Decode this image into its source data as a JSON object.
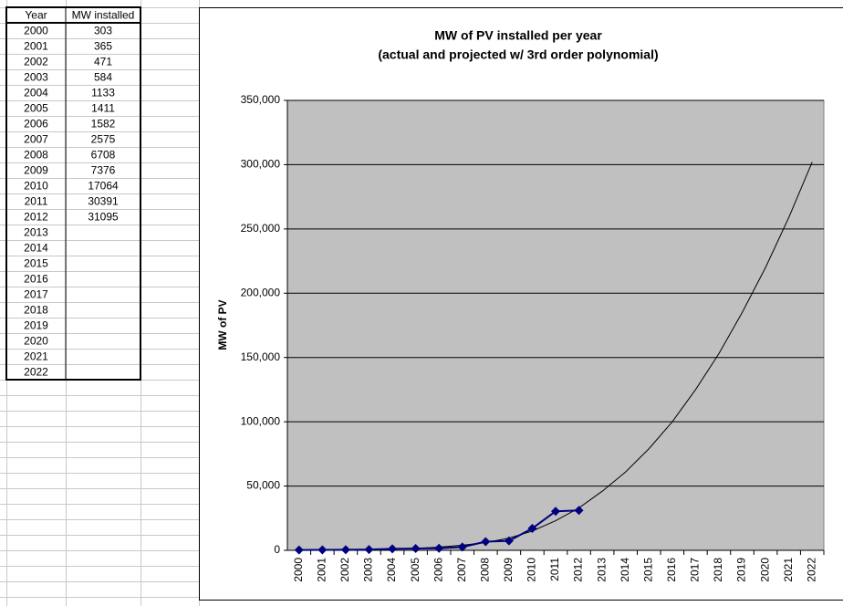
{
  "table": {
    "header": [
      "Year",
      "MW installed"
    ],
    "rows": [
      [
        2000,
        303
      ],
      [
        2001,
        365
      ],
      [
        2002,
        471
      ],
      [
        2003,
        584
      ],
      [
        2004,
        1133
      ],
      [
        2005,
        1411
      ],
      [
        2006,
        1582
      ],
      [
        2007,
        2575
      ],
      [
        2008,
        6708
      ],
      [
        2009,
        7376
      ],
      [
        2010,
        17064
      ],
      [
        2011,
        30391
      ],
      [
        2012,
        31095
      ],
      [
        2013
      ],
      [
        2014
      ],
      [
        2015
      ],
      [
        2016
      ],
      [
        2017
      ],
      [
        2018
      ],
      [
        2019
      ],
      [
        2020
      ],
      [
        2021
      ],
      [
        2022
      ]
    ]
  },
  "chart_data": {
    "type": "line",
    "title": "MW of PV installed per year",
    "subtitle": "(actual and projected w/ 3rd order polynomial)",
    "y_label": "MW of PV",
    "categories": [
      "2000",
      "2001",
      "2002",
      "2003",
      "2004",
      "2005",
      "2006",
      "2007",
      "2008",
      "2009",
      "2010",
      "2011",
      "2012",
      "2013",
      "2014",
      "2015",
      "2016",
      "2017",
      "2018",
      "2019",
      "2020",
      "2021",
      "2022"
    ],
    "series": [
      {
        "color": "#000080",
        "values": [
          303,
          365,
          471,
          584,
          1133,
          1411,
          1582,
          2575,
          6708,
          7376,
          17064,
          30391,
          31095,
          null,
          null,
          null,
          null,
          null,
          null,
          null,
          null,
          null,
          null
        ]
      }
    ],
    "trendline": {
      "order": 3,
      "color": "#000000",
      "values": [
        0,
        0,
        0,
        500,
        1000,
        1500,
        2500,
        4000,
        6000,
        9500,
        15000,
        23000,
        33000,
        46000,
        61000,
        79000,
        100000,
        125000,
        153000,
        185000,
        220000,
        259000,
        302000
      ]
    },
    "ylim": [
      0,
      350000
    ],
    "yticks": [
      0,
      {
        "value": 50000,
        "label": "50,000"
      },
      {
        "value": 100000,
        "label": "100,000"
      },
      {
        "value": 150000,
        "label": "150,000"
      },
      {
        "value": 200000,
        "label": "200,000"
      },
      {
        "value": 250000,
        "label": "250,000"
      },
      {
        "value": 300000,
        "label": "300,000"
      },
      {
        "value": 350000,
        "label": "350,000"
      }
    ],
    "grid": true,
    "plot_color": "#c0c0c0"
  }
}
